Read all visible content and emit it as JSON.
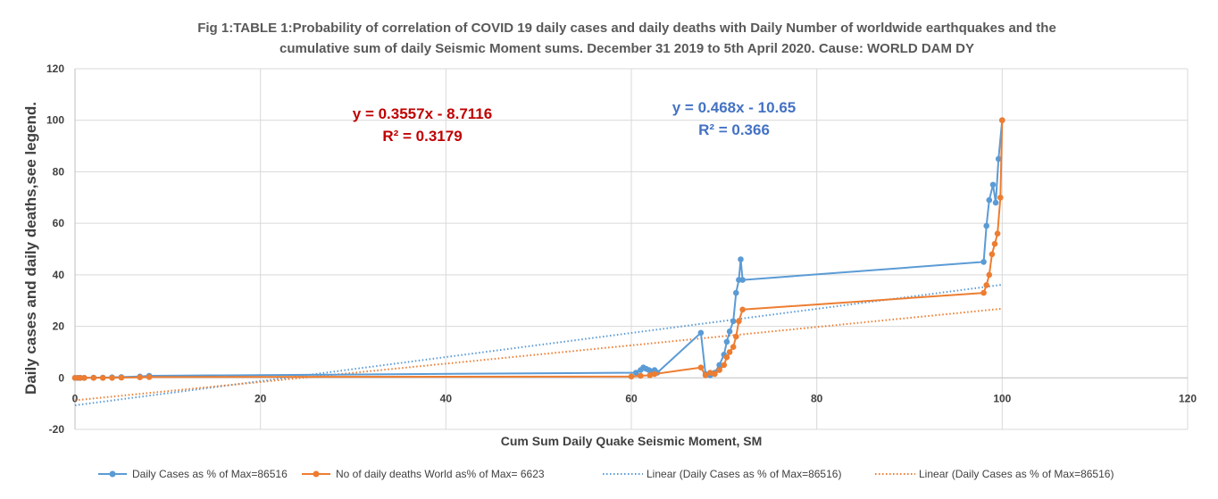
{
  "chart_data": {
    "type": "line",
    "title_line1": "Fig 1:TABLE 1:Probability of correlation of COVID 19  daily cases and daily deaths with Daily Number of worldwide earthquakes and the",
    "title_line2": "cumulative sum of daily Seismic Moment sums.              December 31 2019 to 5th April 2020.       Cause: WORLD DAM DY",
    "xlabel": "Cum Sum Daily Quake Seismic Moment, SM",
    "ylabel": "Daily cases and daily deaths,see legend.",
    "xlim": [
      0,
      120
    ],
    "ylim": [
      -20,
      120
    ],
    "x_ticks": [
      "0",
      "20",
      "40",
      "60",
      "80",
      "100",
      "120"
    ],
    "y_ticks": [
      "-20",
      "0",
      "20",
      "40",
      "60",
      "80",
      "100",
      "120"
    ],
    "grid": true,
    "series": [
      {
        "name": "Daily Cases as % of Max=86516",
        "color": "#5b9bd5",
        "x": [
          0,
          0.3,
          0.6,
          1,
          2,
          3,
          4,
          5,
          7,
          8,
          60.5,
          61,
          61.3,
          61.6,
          61.9,
          62.2,
          62.5,
          62.8,
          67.5,
          68,
          68.5,
          69,
          69.5,
          70,
          70.3,
          70.6,
          71,
          71.3,
          71.6,
          71.8,
          72,
          98,
          98.3,
          98.6,
          99,
          99.3,
          99.6,
          100
        ],
        "y": [
          0,
          0,
          0,
          0,
          0.1,
          0.1,
          0.2,
          0.3,
          0.5,
          0.8,
          2,
          3,
          4,
          3.5,
          3,
          2.5,
          3,
          2,
          17.5,
          1.5,
          1,
          2,
          5,
          9,
          14,
          18,
          22,
          33,
          38,
          46,
          38,
          45,
          59,
          69,
          75,
          68,
          85,
          100
        ]
      },
      {
        "name": "No of daily deaths World as% of Max= 6623",
        "color": "#ed7d31",
        "x": [
          0,
          0.5,
          1,
          2,
          3,
          4,
          5,
          7,
          8,
          60,
          61,
          62,
          62.5,
          67.5,
          68,
          68.5,
          69,
          69.5,
          70,
          70.3,
          70.6,
          71,
          71.3,
          71.6,
          72,
          98,
          98.3,
          98.6,
          98.9,
          99.2,
          99.5,
          99.8,
          100
        ],
        "y": [
          0,
          0,
          0,
          0,
          0,
          0,
          0.1,
          0.2,
          0.3,
          0.5,
          0.8,
          1,
          1.5,
          4,
          1,
          2,
          1.5,
          3,
          5,
          8,
          10,
          12,
          16,
          22,
          26.5,
          33,
          36,
          40,
          48,
          52,
          56,
          70,
          100
        ]
      }
    ],
    "trendlines": [
      {
        "name": "Linear (Daily Cases as % of Max=86516)",
        "color": "#5b9bd5",
        "slope": 0.468,
        "intercept": -10.65,
        "x_range": [
          0,
          100
        ],
        "equation": "y = 0.468x - 10.65",
        "r2": "R² = 0.366"
      },
      {
        "name": "Linear (Daily Cases as % of Max=86516)",
        "color": "#ed7d31",
        "slope": 0.3557,
        "intercept": -8.7116,
        "x_range": [
          0,
          100
        ],
        "equation": "y = 0.3557x - 8.7116",
        "r2": "R² = 0.3179"
      }
    ],
    "equation_colors": {
      "orange_eq": "#c00000",
      "blue_eq": "#4472c4"
    },
    "legend_position": "bottom"
  }
}
